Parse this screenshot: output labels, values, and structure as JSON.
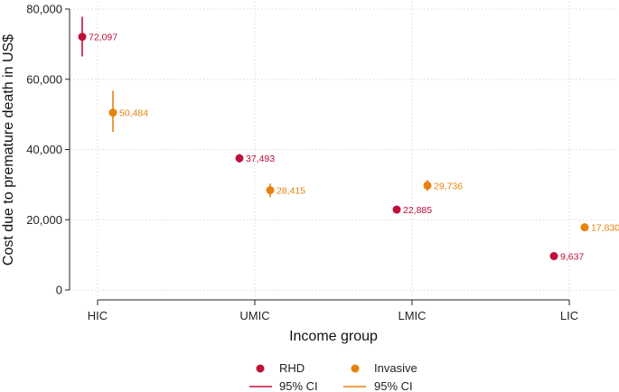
{
  "chart_data": {
    "type": "scatter",
    "title": "",
    "xlabel": "Income group",
    "ylabel": "Cost due to premature death in US$",
    "categories": [
      "HIC",
      "UMIC",
      "LMIC",
      "LIC"
    ],
    "ylim": [
      0,
      80000
    ],
    "yticks": [
      0,
      20000,
      40000,
      60000,
      80000
    ],
    "ytick_labels": [
      "0",
      "20,000",
      "40,000",
      "60,000",
      "80,000"
    ],
    "grid": true,
    "legend_position": "bottom",
    "series": [
      {
        "name": "RHD",
        "ci_name": "95% CI",
        "color": "#c0103a",
        "values": [
          72097,
          37493,
          22885,
          9637
        ],
        "labels": [
          "72,097",
          "37,493",
          "22,885",
          "9,637"
        ],
        "ci_low": [
          66500,
          36300,
          21900,
          9250
        ],
        "ci_high": [
          77800,
          38700,
          23900,
          10000
        ]
      },
      {
        "name": "Invasive",
        "ci_name": "95% CI",
        "color": "#e8820e",
        "values": [
          50484,
          28415,
          29736,
          17830
        ],
        "labels": [
          "50,484",
          "28,415",
          "29,736",
          "17,830"
        ],
        "ci_low": [
          45000,
          26400,
          28200,
          17200
        ],
        "ci_high": [
          56700,
          30300,
          31300,
          18500
        ]
      }
    ]
  }
}
